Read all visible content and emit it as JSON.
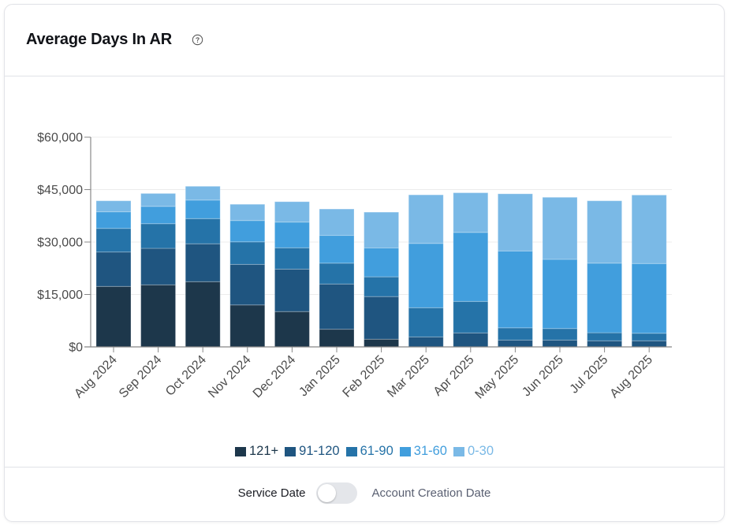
{
  "card": {
    "title": "Average Days In AR",
    "help_icon": "question-circle-icon"
  },
  "toggle": {
    "left_label": "Service Date",
    "right_label": "Account Creation Date",
    "state": "off"
  },
  "chart_data": {
    "type": "bar",
    "stacked": true,
    "title": "Average Days In AR",
    "xlabel": "",
    "ylabel": "",
    "ylim": [
      0,
      60000
    ],
    "yticks": [
      0,
      15000,
      30000,
      45000,
      60000
    ],
    "ytick_labels": [
      "$0",
      "$15,000",
      "$30,000",
      "$45,000",
      "$60,000"
    ],
    "grid": true,
    "legend_position": "bottom",
    "categories": [
      "Aug 2024",
      "Sep 2024",
      "Oct 2024",
      "Nov 2024",
      "Dec 2024",
      "Jan 2025",
      "Feb 2025",
      "Mar 2025",
      "Apr 2025",
      "May 2025",
      "Jun 2025",
      "Jul 2025",
      "Aug 2025"
    ],
    "series": [
      {
        "name": "121+",
        "color": "#1d374b",
        "values": [
          17300,
          17750,
          18650,
          12000,
          10100,
          5050,
          2200,
          0,
          0,
          0,
          0,
          0,
          0
        ]
      },
      {
        "name": "91-120",
        "color": "#1f5580",
        "values": [
          9850,
          10450,
          10850,
          11600,
          12150,
          12950,
          12200,
          2850,
          4000,
          1950,
          1950,
          1750,
          1750
        ]
      },
      {
        "name": "61-90",
        "color": "#2573a8",
        "values": [
          6750,
          7050,
          7200,
          6450,
          6100,
          5950,
          5650,
          8350,
          9000,
          3500,
          3300,
          2300,
          2150
        ]
      },
      {
        "name": "31-60",
        "color": "#419edd",
        "values": [
          4750,
          4950,
          5300,
          6100,
          7350,
          7950,
          8250,
          18400,
          19750,
          22000,
          19800,
          19900,
          19950
        ]
      },
      {
        "name": "0-30",
        "color": "#7ab9e6",
        "values": [
          3150,
          3700,
          3950,
          4650,
          5850,
          7550,
          10250,
          13900,
          11350,
          16350,
          17750,
          17850,
          19600
        ]
      }
    ]
  }
}
